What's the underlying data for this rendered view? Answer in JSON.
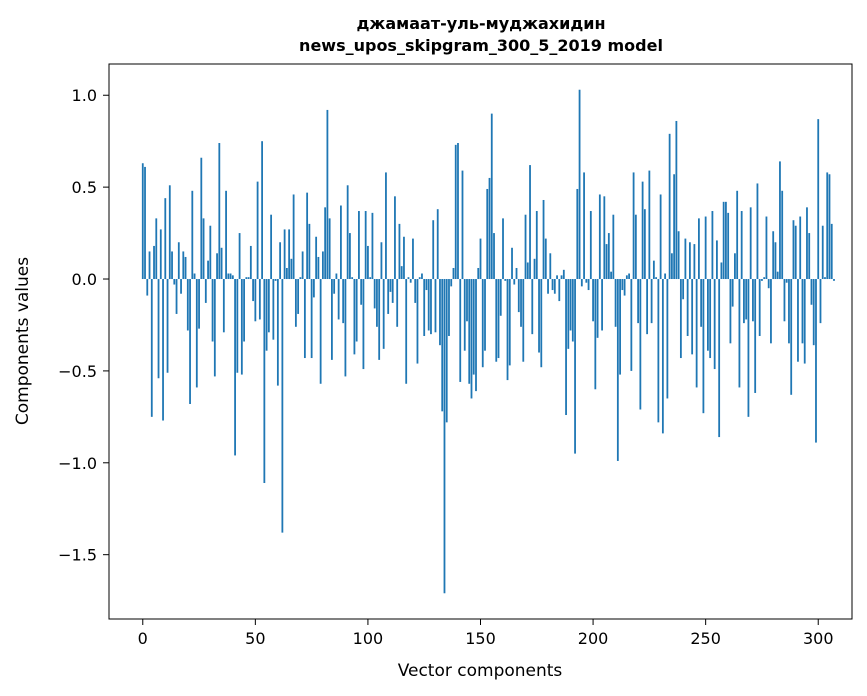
{
  "chart_data": {
    "type": "bar",
    "title": "джамаат-уль-муджахидин",
    "subtitle": "news_upos_skipgram_300_5_2019 model",
    "xlabel": "Vector components",
    "ylabel": "Components values",
    "xlim": [
      -15,
      315
    ],
    "ylim": [
      -1.85,
      1.17
    ],
    "xticks": [
      0,
      50,
      100,
      150,
      200,
      250,
      300
    ],
    "xtick_labels": [
      "0",
      "50",
      "100",
      "150",
      "200",
      "250",
      "300"
    ],
    "yticks": [
      1.0,
      0.5,
      0.0,
      -0.5,
      -1.0,
      -1.5
    ],
    "ytick_labels": [
      "1.0",
      "0.5",
      "0.0",
      "−0.5",
      "−1.0",
      "−1.5"
    ],
    "bar_color": "#1f77b4",
    "values": [
      0.63,
      0.61,
      -0.09,
      0.15,
      -0.75,
      0.18,
      0.33,
      -0.54,
      0.27,
      -0.77,
      0.44,
      -0.51,
      0.51,
      0.15,
      -0.03,
      -0.19,
      0.2,
      -0.08,
      0.15,
      0.12,
      -0.28,
      -0.68,
      0.48,
      0.03,
      -0.59,
      -0.27,
      0.66,
      0.33,
      -0.13,
      0.1,
      0.29,
      -0.34,
      -0.53,
      0.14,
      0.74,
      0.17,
      -0.29,
      0.48,
      0.03,
      0.03,
      0.02,
      -0.96,
      -0.51,
      0.25,
      -0.52,
      -0.34,
      0.01,
      0.01,
      0.18,
      -0.12,
      -0.23,
      0.53,
      -0.22,
      0.75,
      -1.11,
      -0.39,
      -0.29,
      0.35,
      -0.33,
      -0.01,
      -0.58,
      0.2,
      -1.38,
      0.27,
      0.06,
      0.27,
      0.11,
      0.46,
      -0.26,
      -0.19,
      0.01,
      0.15,
      -0.43,
      0.47,
      0.3,
      -0.43,
      -0.1,
      0.23,
      0.12,
      -0.57,
      0.15,
      0.39,
      0.92,
      0.33,
      -0.44,
      -0.08,
      0.03,
      -0.22,
      0.4,
      -0.24,
      -0.53,
      0.51,
      0.25,
      0.01,
      -0.41,
      -0.34,
      0.37,
      -0.14,
      -0.49,
      0.37,
      0.18,
      0.01,
      0.36,
      -0.16,
      -0.26,
      -0.44,
      0.2,
      -0.38,
      0.58,
      -0.19,
      -0.07,
      -0.13,
      0.45,
      -0.26,
      0.3,
      0.07,
      0.23,
      -0.57,
      0.01,
      -0.02,
      0.22,
      -0.13,
      -0.46,
      0.01,
      0.03,
      -0.31,
      -0.06,
      -0.28,
      -0.3,
      0.32,
      -0.29,
      0.38,
      -0.36,
      -0.72,
      -1.71,
      -0.78,
      -0.31,
      -0.04,
      0.06,
      0.73,
      0.74,
      -0.56,
      0.59,
      -0.39,
      -0.23,
      -0.57,
      -0.65,
      -0.52,
      -0.61,
      0.06,
      0.22,
      -0.48,
      -0.39,
      0.49,
      0.55,
      0.9,
      0.25,
      -0.45,
      -0.43,
      -0.2,
      0.33,
      -0.01,
      -0.55,
      -0.47,
      0.17,
      -0.03,
      0.06,
      -0.18,
      -0.26,
      -0.45,
      0.35,
      0.09,
      0.62,
      -0.3,
      0.11,
      0.37,
      -0.4,
      -0.48,
      0.43,
      0.22,
      -0.08,
      0.14,
      -0.06,
      -0.08,
      0.02,
      -0.12,
      0.02,
      0.05,
      -0.74,
      -0.38,
      -0.28,
      -0.34,
      -0.95,
      0.49,
      1.03,
      -0.04,
      0.58,
      -0.02,
      -0.06,
      0.37,
      -0.23,
      -0.6,
      -0.32,
      0.46,
      -0.28,
      0.45,
      0.19,
      0.25,
      0.04,
      0.35,
      -0.26,
      -0.99,
      -0.52,
      -0.06,
      -0.09,
      0.02,
      0.03,
      -0.5,
      0.58,
      0.35,
      -0.24,
      -0.71,
      0.53,
      0.38,
      -0.3,
      0.59,
      -0.24,
      0.1,
      0.01,
      -0.78,
      0.46,
      -0.84,
      0.03,
      -0.65,
      0.79,
      0.14,
      0.57,
      0.86,
      0.26,
      -0.43,
      -0.11,
      0.22,
      -0.31,
      0.2,
      -0.41,
      0.19,
      -0.59,
      0.33,
      -0.26,
      -0.73,
      0.34,
      -0.39,
      -0.43,
      0.37,
      -0.49,
      0.21,
      -0.86,
      0.09,
      0.42,
      0.42,
      0.36,
      -0.35,
      -0.15,
      0.14,
      0.48,
      -0.59,
      0.37,
      -0.24,
      -0.22,
      -0.75,
      0.39,
      -0.23,
      -0.62,
      0.52,
      -0.31,
      -0.01,
      0.01,
      0.34,
      -0.05,
      -0.35,
      0.26,
      0.2,
      0.04,
      0.64,
      0.48,
      -0.23,
      -0.02,
      -0.35,
      -0.63,
      0.32,
      0.29,
      -0.45,
      0.34,
      -0.35,
      -0.46,
      0.39,
      0.25,
      -0.14,
      -0.36,
      -0.89,
      0.87,
      -0.24,
      0.29,
      0.01,
      0.58,
      0.57,
      0.3,
      -0.01
    ]
  }
}
